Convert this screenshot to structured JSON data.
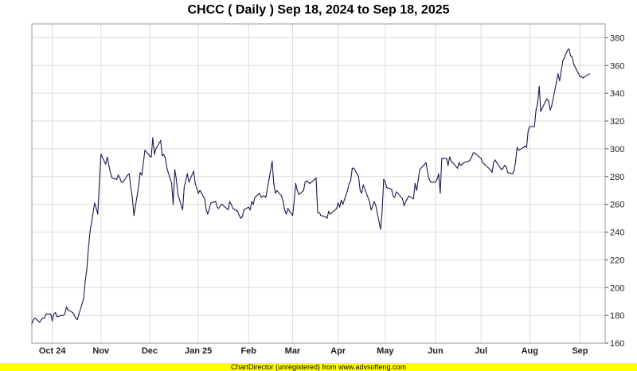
{
  "title": "CHCC ( Daily ) Sep 18, 2024 to Sep 18, 2025",
  "footer": "ChartDirector (unregistered) from www.advsofteng.com",
  "colors": {
    "line": "#1a1a4e",
    "grid": "#dcdcdc",
    "footer_bg": "#ffff00"
  },
  "chart_data": {
    "type": "line",
    "title": "CHCC ( Daily ) Sep 18, 2024 to Sep 18, 2025",
    "xlabel": "",
    "ylabel": "",
    "ylim": [
      160,
      390
    ],
    "xlim": [
      "2024-09-18",
      "2025-09-18"
    ],
    "grid": true,
    "y_axis_side": "right",
    "y_ticks": [
      160,
      180,
      200,
      220,
      240,
      260,
      280,
      300,
      320,
      340,
      360,
      380
    ],
    "x_ticks": [
      {
        "label": "Oct 24",
        "date": "2024-10-01"
      },
      {
        "label": "Nov",
        "date": "2024-11-01"
      },
      {
        "label": "Dec",
        "date": "2024-12-02"
      },
      {
        "label": "Jan 25",
        "date": "2025-01-02"
      },
      {
        "label": "Feb",
        "date": "2025-02-03"
      },
      {
        "label": "Mar",
        "date": "2025-03-03"
      },
      {
        "label": "Apr",
        "date": "2025-04-01"
      },
      {
        "label": "May",
        "date": "2025-05-01"
      },
      {
        "label": "Jun",
        "date": "2025-06-02"
      },
      {
        "label": "Jul",
        "date": "2025-07-01"
      },
      {
        "label": "Aug",
        "date": "2025-08-01"
      },
      {
        "label": "Sep",
        "date": "2025-09-02"
      }
    ],
    "series": [
      {
        "values": [
          [
            "2024-09-18",
            174
          ],
          [
            "2024-09-19",
            177
          ],
          [
            "2024-09-20",
            178
          ],
          [
            "2024-09-23",
            175
          ],
          [
            "2024-09-24",
            177
          ],
          [
            "2024-09-25",
            178
          ],
          [
            "2024-09-26",
            178
          ],
          [
            "2024-09-27",
            181
          ],
          [
            "2024-09-30",
            181
          ],
          [
            "2024-10-01",
            176
          ],
          [
            "2024-10-02",
            181
          ],
          [
            "2024-10-03",
            182
          ],
          [
            "2024-10-04",
            179
          ],
          [
            "2024-10-07",
            180
          ],
          [
            "2024-10-08",
            180
          ],
          [
            "2024-10-09",
            181
          ],
          [
            "2024-10-10",
            186
          ],
          [
            "2024-10-11",
            184
          ],
          [
            "2024-10-14",
            182
          ],
          [
            "2024-10-15",
            180
          ],
          [
            "2024-10-16",
            178
          ],
          [
            "2024-10-17",
            177
          ],
          [
            "2024-10-18",
            181
          ],
          [
            "2024-10-21",
            192
          ],
          [
            "2024-10-22",
            205
          ],
          [
            "2024-10-23",
            213
          ],
          [
            "2024-10-24",
            228
          ],
          [
            "2024-10-25",
            240
          ],
          [
            "2024-10-28",
            261
          ],
          [
            "2024-10-29",
            257
          ],
          [
            "2024-10-30",
            253
          ],
          [
            "2024-10-31",
            276
          ],
          [
            "2024-11-01",
            296
          ],
          [
            "2024-11-04",
            289
          ],
          [
            "2024-11-05",
            294
          ],
          [
            "2024-11-06",
            288
          ],
          [
            "2024-11-07",
            283
          ],
          [
            "2024-11-08",
            279
          ],
          [
            "2024-11-11",
            278
          ],
          [
            "2024-11-12",
            281
          ],
          [
            "2024-11-13",
            279
          ],
          [
            "2024-11-14",
            276
          ],
          [
            "2024-11-15",
            276
          ],
          [
            "2024-11-18",
            281
          ],
          [
            "2024-11-19",
            282
          ],
          [
            "2024-11-20",
            272
          ],
          [
            "2024-11-21",
            265
          ],
          [
            "2024-11-22",
            252
          ],
          [
            "2024-11-25",
            273
          ],
          [
            "2024-11-26",
            283
          ],
          [
            "2024-11-27",
            281
          ],
          [
            "2024-11-29",
            299
          ],
          [
            "2024-12-02",
            295
          ],
          [
            "2024-12-03",
            294
          ],
          [
            "2024-12-04",
            308
          ],
          [
            "2024-12-05",
            296
          ],
          [
            "2024-12-06",
            300
          ],
          [
            "2024-12-09",
            306
          ],
          [
            "2024-12-10",
            295
          ],
          [
            "2024-12-11",
            296
          ],
          [
            "2024-12-12",
            293
          ],
          [
            "2024-12-13",
            286
          ],
          [
            "2024-12-16",
            275
          ],
          [
            "2024-12-17",
            260
          ],
          [
            "2024-12-18",
            285
          ],
          [
            "2024-12-19",
            278
          ],
          [
            "2024-12-20",
            267
          ],
          [
            "2024-12-23",
            256
          ],
          [
            "2024-12-24",
            272
          ],
          [
            "2024-12-26",
            282
          ],
          [
            "2024-12-27",
            276
          ],
          [
            "2024-12-30",
            284
          ],
          [
            "2024-12-31",
            275
          ],
          [
            "2025-01-02",
            268
          ],
          [
            "2025-01-03",
            270
          ],
          [
            "2025-01-06",
            264
          ],
          [
            "2025-01-07",
            256
          ],
          [
            "2025-01-08",
            253
          ],
          [
            "2025-01-10",
            261
          ],
          [
            "2025-01-13",
            262
          ],
          [
            "2025-01-14",
            258
          ],
          [
            "2025-01-15",
            257
          ],
          [
            "2025-01-16",
            259
          ],
          [
            "2025-01-17",
            260
          ],
          [
            "2025-01-21",
            256
          ],
          [
            "2025-01-22",
            262
          ],
          [
            "2025-01-23",
            260
          ],
          [
            "2025-01-24",
            257
          ],
          [
            "2025-01-27",
            255
          ],
          [
            "2025-01-28",
            252
          ],
          [
            "2025-01-29",
            250
          ],
          [
            "2025-01-30",
            251
          ],
          [
            "2025-01-31",
            256
          ],
          [
            "2025-02-03",
            258
          ],
          [
            "2025-02-04",
            256
          ],
          [
            "2025-02-05",
            262
          ],
          [
            "2025-02-06",
            260
          ],
          [
            "2025-02-07",
            265
          ],
          [
            "2025-02-10",
            268
          ],
          [
            "2025-02-11",
            265
          ],
          [
            "2025-02-12",
            266
          ],
          [
            "2025-02-13",
            266
          ],
          [
            "2025-02-14",
            265
          ],
          [
            "2025-02-18",
            291
          ],
          [
            "2025-02-19",
            275
          ],
          [
            "2025-02-20",
            268
          ],
          [
            "2025-02-21",
            270
          ],
          [
            "2025-02-24",
            266
          ],
          [
            "2025-02-25",
            262
          ],
          [
            "2025-02-26",
            256
          ],
          [
            "2025-02-27",
            253
          ],
          [
            "2025-02-28",
            257
          ],
          [
            "2025-03-03",
            252
          ],
          [
            "2025-03-04",
            262
          ],
          [
            "2025-03-05",
            275
          ],
          [
            "2025-03-06",
            270
          ],
          [
            "2025-03-07",
            267
          ],
          [
            "2025-03-10",
            270
          ],
          [
            "2025-03-11",
            276
          ],
          [
            "2025-03-12",
            277
          ],
          [
            "2025-03-13",
            276
          ],
          [
            "2025-03-14",
            275
          ],
          [
            "2025-03-17",
            278
          ],
          [
            "2025-03-18",
            279
          ],
          [
            "2025-03-19",
            254
          ],
          [
            "2025-03-20",
            254
          ],
          [
            "2025-03-21",
            252
          ],
          [
            "2025-03-24",
            251
          ],
          [
            "2025-03-25",
            250
          ],
          [
            "2025-03-26",
            255
          ],
          [
            "2025-03-27",
            253
          ],
          [
            "2025-03-28",
            254
          ],
          [
            "2025-03-31",
            257
          ],
          [
            "2025-04-01",
            261
          ],
          [
            "2025-04-02",
            258
          ],
          [
            "2025-04-03",
            263
          ],
          [
            "2025-04-04",
            260
          ],
          [
            "2025-04-07",
            270
          ],
          [
            "2025-04-08",
            275
          ],
          [
            "2025-04-09",
            277
          ],
          [
            "2025-04-10",
            286
          ],
          [
            "2025-04-11",
            286
          ],
          [
            "2025-04-14",
            280
          ],
          [
            "2025-04-15",
            270
          ],
          [
            "2025-04-16",
            268
          ],
          [
            "2025-04-17",
            274
          ],
          [
            "2025-04-21",
            262
          ],
          [
            "2025-04-22",
            256
          ],
          [
            "2025-04-23",
            259
          ],
          [
            "2025-04-24",
            262
          ],
          [
            "2025-04-25",
            259
          ],
          [
            "2025-04-28",
            242
          ],
          [
            "2025-04-29",
            255
          ],
          [
            "2025-04-30",
            278
          ],
          [
            "2025-05-01",
            276
          ],
          [
            "2025-05-02",
            272
          ],
          [
            "2025-05-05",
            271
          ],
          [
            "2025-05-06",
            266
          ],
          [
            "2025-05-07",
            265
          ],
          [
            "2025-05-08",
            269
          ],
          [
            "2025-05-09",
            268
          ],
          [
            "2025-05-12",
            264
          ],
          [
            "2025-05-13",
            259
          ],
          [
            "2025-05-14",
            262
          ],
          [
            "2025-05-15",
            264
          ],
          [
            "2025-05-16",
            266
          ],
          [
            "2025-05-19",
            264
          ],
          [
            "2025-05-20",
            275
          ],
          [
            "2025-05-21",
            270
          ],
          [
            "2025-05-22",
            278
          ],
          [
            "2025-05-23",
            285
          ],
          [
            "2025-05-27",
            290
          ],
          [
            "2025-05-28",
            283
          ],
          [
            "2025-05-29",
            278
          ],
          [
            "2025-05-30",
            276
          ],
          [
            "2025-06-02",
            276
          ],
          [
            "2025-06-03",
            278
          ],
          [
            "2025-06-04",
            282
          ],
          [
            "2025-06-05",
            268
          ],
          [
            "2025-06-06",
            293
          ],
          [
            "2025-06-09",
            293
          ],
          [
            "2025-06-10",
            288
          ],
          [
            "2025-06-11",
            294
          ],
          [
            "2025-06-12",
            291
          ],
          [
            "2025-06-13",
            290
          ],
          [
            "2025-06-16",
            286
          ],
          [
            "2025-06-17",
            290
          ],
          [
            "2025-06-18",
            288
          ],
          [
            "2025-06-20",
            290
          ],
          [
            "2025-06-23",
            291
          ],
          [
            "2025-06-24",
            292
          ],
          [
            "2025-06-25",
            294
          ],
          [
            "2025-06-26",
            297
          ],
          [
            "2025-06-27",
            297
          ],
          [
            "2025-06-30",
            294
          ],
          [
            "2025-07-01",
            293
          ],
          [
            "2025-07-02",
            290
          ],
          [
            "2025-07-03",
            289
          ],
          [
            "2025-07-07",
            285
          ],
          [
            "2025-07-08",
            283
          ],
          [
            "2025-07-09",
            290
          ],
          [
            "2025-07-10",
            292
          ],
          [
            "2025-07-11",
            290
          ],
          [
            "2025-07-14",
            285
          ],
          [
            "2025-07-15",
            286
          ],
          [
            "2025-07-16",
            288
          ],
          [
            "2025-07-17",
            287
          ],
          [
            "2025-07-18",
            283
          ],
          [
            "2025-07-21",
            282
          ],
          [
            "2025-07-22",
            284
          ],
          [
            "2025-07-23",
            291
          ],
          [
            "2025-07-24",
            301
          ],
          [
            "2025-07-25",
            299
          ],
          [
            "2025-07-28",
            301
          ],
          [
            "2025-07-29",
            302
          ],
          [
            "2025-07-30",
            301
          ],
          [
            "2025-07-31",
            313
          ],
          [
            "2025-08-01",
            316
          ],
          [
            "2025-08-04",
            316
          ],
          [
            "2025-08-05",
            328
          ],
          [
            "2025-08-06",
            333
          ],
          [
            "2025-08-07",
            345
          ],
          [
            "2025-08-08",
            327
          ],
          [
            "2025-08-11",
            334
          ],
          [
            "2025-08-12",
            336
          ],
          [
            "2025-08-13",
            334
          ],
          [
            "2025-08-14",
            328
          ],
          [
            "2025-08-15",
            331
          ],
          [
            "2025-08-18",
            348
          ],
          [
            "2025-08-19",
            354
          ],
          [
            "2025-08-20",
            349
          ],
          [
            "2025-08-21",
            356
          ],
          [
            "2025-08-22",
            363
          ],
          [
            "2025-08-25",
            371
          ],
          [
            "2025-08-26",
            372
          ],
          [
            "2025-08-27",
            367
          ],
          [
            "2025-08-28",
            366
          ],
          [
            "2025-08-29",
            361
          ],
          [
            "2025-09-02",
            352
          ],
          [
            "2025-09-03",
            352
          ],
          [
            "2025-09-04",
            351
          ],
          [
            "2025-09-05",
            352
          ],
          [
            "2025-09-08",
            354
          ]
        ]
      }
    ]
  }
}
